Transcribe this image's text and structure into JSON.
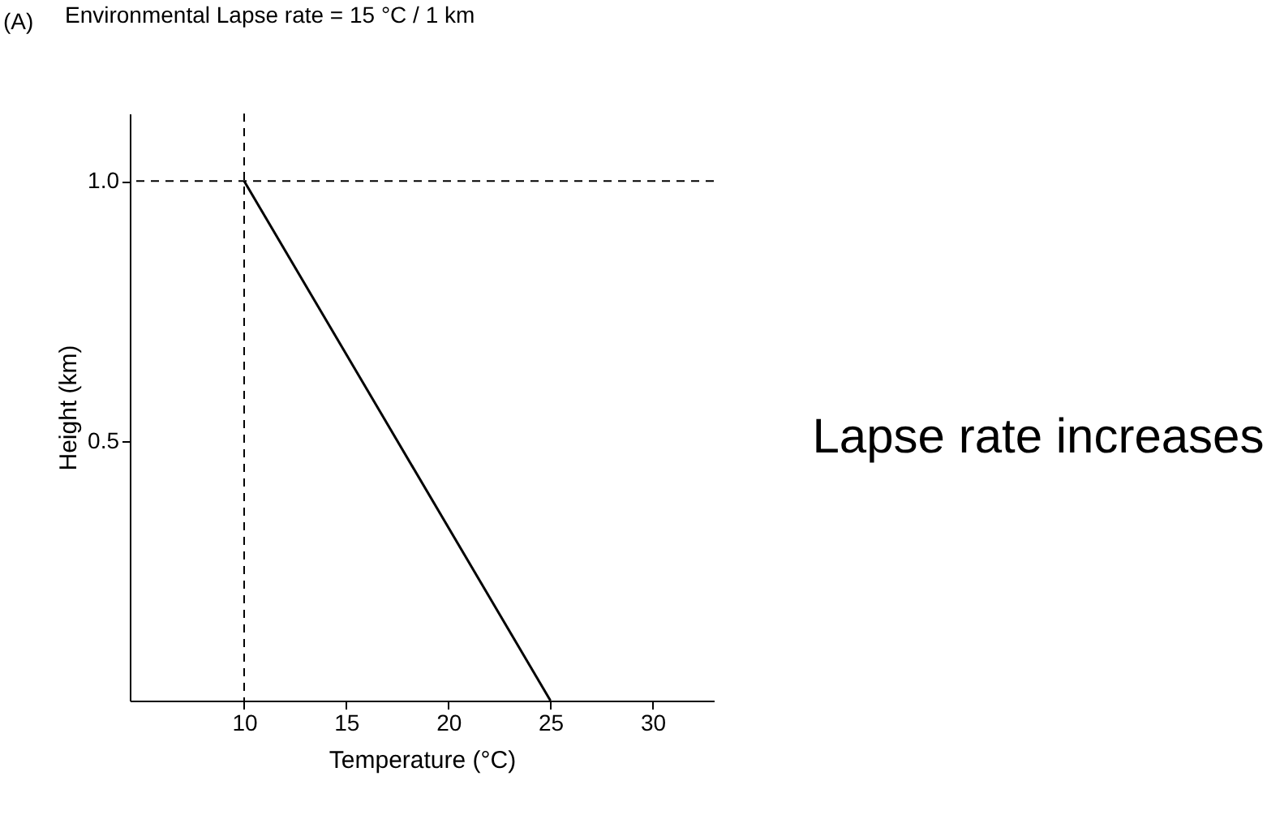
{
  "chart_data": {
    "type": "line",
    "title": "(A)",
    "xlabel": "Temperature (°C)",
    "ylabel": "Height (km)",
    "x": [
      10,
      25
    ],
    "series": [
      {
        "color": "#000000",
        "values": [
          1.0,
          0
        ]
      }
    ],
    "xlim": [
      4.4,
      33
    ],
    "ylim": [
      0,
      1.13
    ],
    "xticks": [
      10,
      15,
      20,
      25,
      30
    ],
    "yticks": [
      0.5,
      {
        "value": 1,
        "label": "1.0"
      }
    ],
    "ref_lines": [
      {
        "axis": "x",
        "value": 10,
        "color": "#000000",
        "line_style": "dashed"
      },
      {
        "axis": "y",
        "value": 1.0,
        "color": "#000000",
        "line_style": "dashed"
      }
    ],
    "annotations": [
      "Environmental Lapse rate = 15 °C / 1 km",
      "Lapse rate increases"
    ],
    "grid": false,
    "marker": "none",
    "line_style": "solid"
  }
}
